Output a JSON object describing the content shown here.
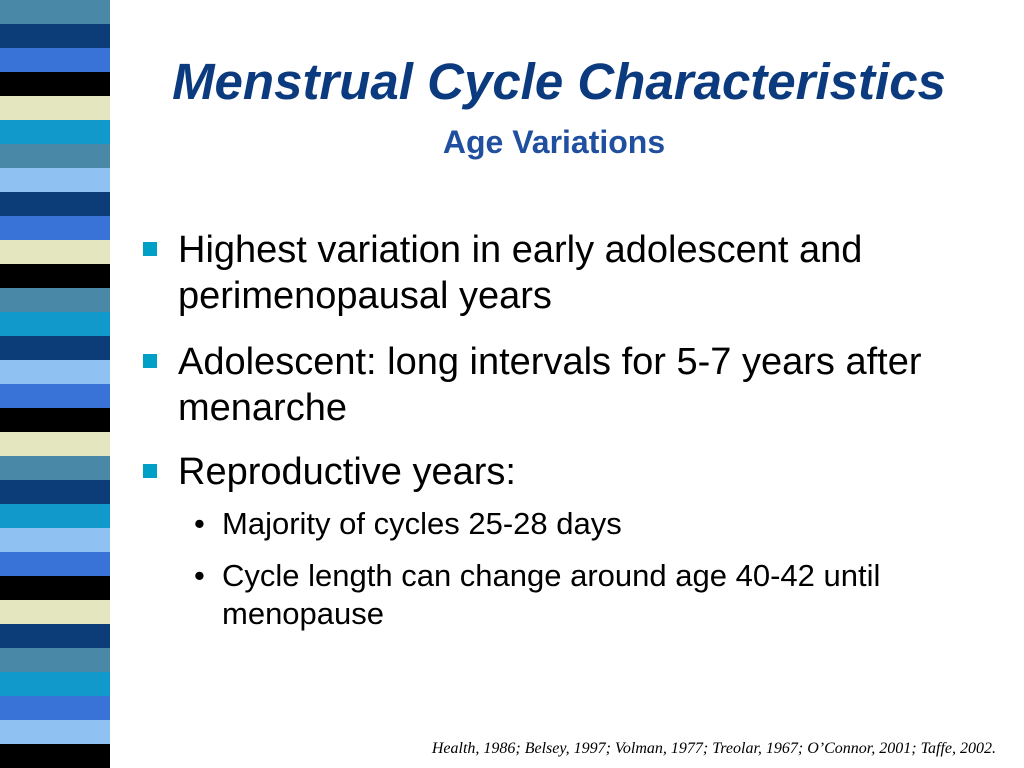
{
  "slide": {
    "title": "Menstrual Cycle Characteristics",
    "subtitle": "Age Variations",
    "bullets": [
      {
        "text": "Highest variation in early adolescent and perimenopausal years"
      },
      {
        "text": "Adolescent: long intervals for 5-7 years after menarche"
      },
      {
        "text": "Reproductive years:",
        "subitems": [
          {
            "text": "Majority of cycles 25-28 days"
          },
          {
            "text": "Cycle length can change around age 40-42 until menopause"
          }
        ]
      }
    ],
    "sub_bullet_glyph": "•",
    "citation": "Health, 1986; Belsey, 1997; Volman, 1977; Treolar, 1967; O’Connor, 2001; Taffe, 2002."
  },
  "colors": {
    "title": "#0b3a7e",
    "subtitle": "#1f4f9e",
    "bullet_square": "#00a0c6",
    "strip_palette": [
      "#4a88a8",
      "#0c3d78",
      "#3a73d8",
      "#000000",
      "#e4e6c0",
      "#1199cc",
      "#8fc1f2",
      "#6f8fa0"
    ]
  }
}
